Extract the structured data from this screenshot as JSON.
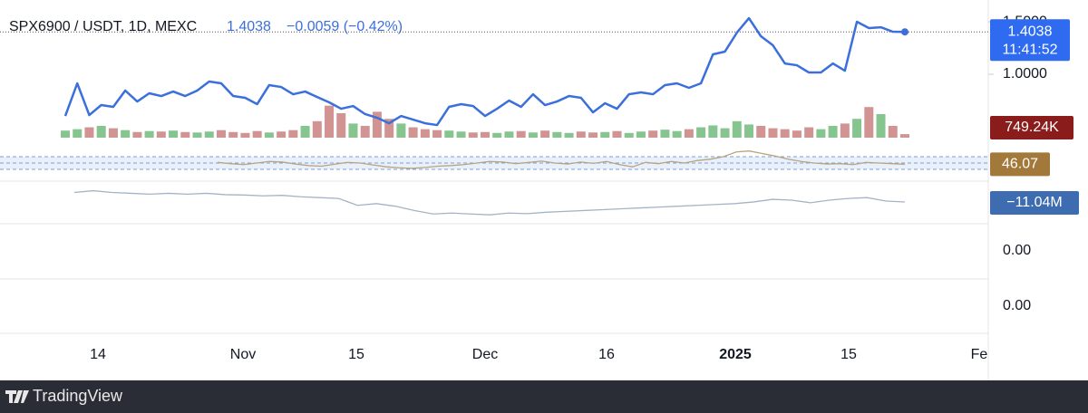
{
  "header": {
    "symbol": "SPX6900 / USDT, 1D, MEXC",
    "price": "1.4038",
    "change": "−0.0059 (−0.42%)"
  },
  "price_pane": {
    "ylim": [
      0.414,
      1.621
    ],
    "yticks": [
      {
        "value": 1.5,
        "label": "1.5000"
      },
      {
        "value": 1.0,
        "label": "1.0000"
      }
    ],
    "last": {
      "value": 1.4038,
      "label": "1.4038"
    },
    "countdown": "11:41:52",
    "color": "#3b6fdc",
    "values": [
      0.603,
      0.914,
      0.612,
      0.707,
      0.69,
      0.845,
      0.741,
      0.819,
      0.793,
      0.836,
      0.793,
      0.845,
      0.931,
      0.914,
      0.793,
      0.776,
      0.716,
      0.897,
      0.879,
      0.81,
      0.836,
      0.784,
      0.733,
      0.672,
      0.698,
      0.621,
      0.586,
      0.534,
      0.603,
      0.569,
      0.534,
      0.517,
      0.69,
      0.716,
      0.698,
      0.603,
      0.672,
      0.75,
      0.69,
      0.81,
      0.707,
      0.741,
      0.793,
      0.776,
      0.638,
      0.724,
      0.672,
      0.81,
      0.828,
      0.81,
      0.897,
      0.914,
      0.871,
      0.914,
      1.19,
      1.216,
      1.397,
      1.534,
      1.362,
      1.276,
      1.103,
      1.086,
      1.017,
      1.017,
      1.103,
      1.034,
      1.5,
      1.44,
      1.448,
      1.405,
      1.4038
    ]
  },
  "volume": {
    "last_label": "749.24K",
    "up_color": "#86c490",
    "down_color": "#d29393",
    "values": [
      1500000,
      1800000,
      2200000,
      2500000,
      2000000,
      1600000,
      1200000,
      1400000,
      1300000,
      1500000,
      1200000,
      1100000,
      1300000,
      1600000,
      1200000,
      1000000,
      1400000,
      1100000,
      1300000,
      1600000,
      2500000,
      3500000,
      6800000,
      5200000,
      3000000,
      2500000,
      5500000,
      4000000,
      3000000,
      2200000,
      1800000,
      1600000,
      1500000,
      1300000,
      1100000,
      1200000,
      1000000,
      1300000,
      1400000,
      1100000,
      1500000,
      1200000,
      1000000,
      1300000,
      1100000,
      1200000,
      1400000,
      1000000,
      1300000,
      1500000,
      1700000,
      1400000,
      1800000,
      2200000,
      2600000,
      2000000,
      3500000,
      2800000,
      2500000,
      2000000,
      1800000,
      1500000,
      2200000,
      1800000,
      2500000,
      3000000,
      4000000,
      6500000,
      5000000,
      2500000,
      749240
    ]
  },
  "rsi": {
    "last": 46.07,
    "color": "#b9a47e",
    "values": [
      52,
      48,
      45,
      50,
      55,
      53,
      47,
      42,
      40,
      46,
      52,
      50,
      44,
      38,
      35,
      33,
      36,
      40,
      42,
      45,
      50,
      55,
      53,
      48,
      52,
      56,
      50,
      47,
      53,
      49,
      55,
      45,
      38,
      52,
      48,
      55,
      50,
      58,
      62,
      70,
      85,
      88,
      80,
      72,
      62,
      55,
      50,
      47,
      48,
      45,
      52,
      50,
      48,
      46.07
    ]
  },
  "obv": {
    "last_label": "−11.04M",
    "color": "#a3b4c6",
    "values": [
      -5.5,
      -4.5,
      -5.5,
      -6,
      -6.5,
      -6,
      -6.5,
      -6,
      -6.8,
      -7,
      -7.5,
      -7.2,
      -8,
      -8.5,
      -9,
      -13,
      -12,
      -13.5,
      -16,
      -18,
      -17.5,
      -18,
      -18.5,
      -17.5,
      -17.8,
      -17,
      -16.5,
      -16,
      -15.5,
      -15,
      -14.5,
      -14,
      -13.5,
      -13,
      -12.5,
      -12,
      -11,
      -9.5,
      -10,
      -11.5,
      -10,
      -9,
      -8.5,
      -10.5,
      -11.04
    ]
  },
  "empty_panes": [
    "0.00",
    "0.00"
  ],
  "x_axis": [
    "14",
    "Nov",
    "15",
    "Dec",
    "16",
    "2025",
    "15",
    "Fe"
  ],
  "footer": "TradingView"
}
